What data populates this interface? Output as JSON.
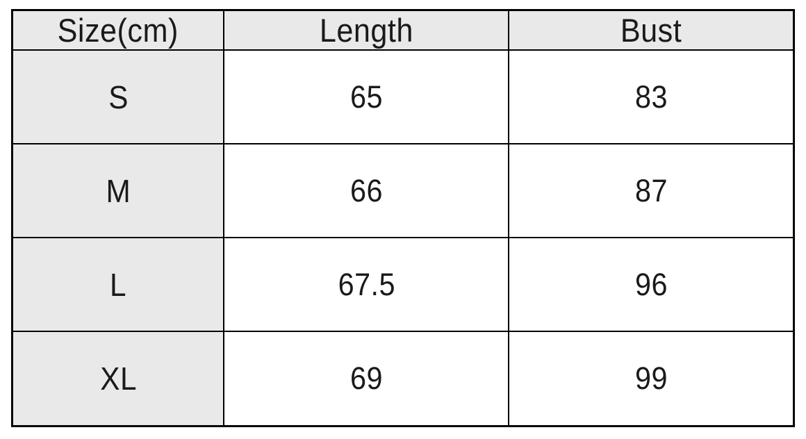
{
  "table": {
    "columns": [
      {
        "key": "size",
        "label": "Size(cm)"
      },
      {
        "key": "length",
        "label": "Length"
      },
      {
        "key": "bust",
        "label": "Bust"
      }
    ],
    "rows": [
      {
        "size": "S",
        "length": "65",
        "bust": "83"
      },
      {
        "size": "M",
        "length": "66",
        "bust": "87"
      },
      {
        "size": "L",
        "length": "67.5",
        "bust": "96"
      },
      {
        "size": "XL",
        "length": "69",
        "bust": "99"
      }
    ]
  },
  "colors": {
    "border": "#000000",
    "header_bg": "#e9e9e9",
    "cell_bg": "#ffffff",
    "text": "#1a1a1a",
    "page_bg": "#ffffff"
  }
}
